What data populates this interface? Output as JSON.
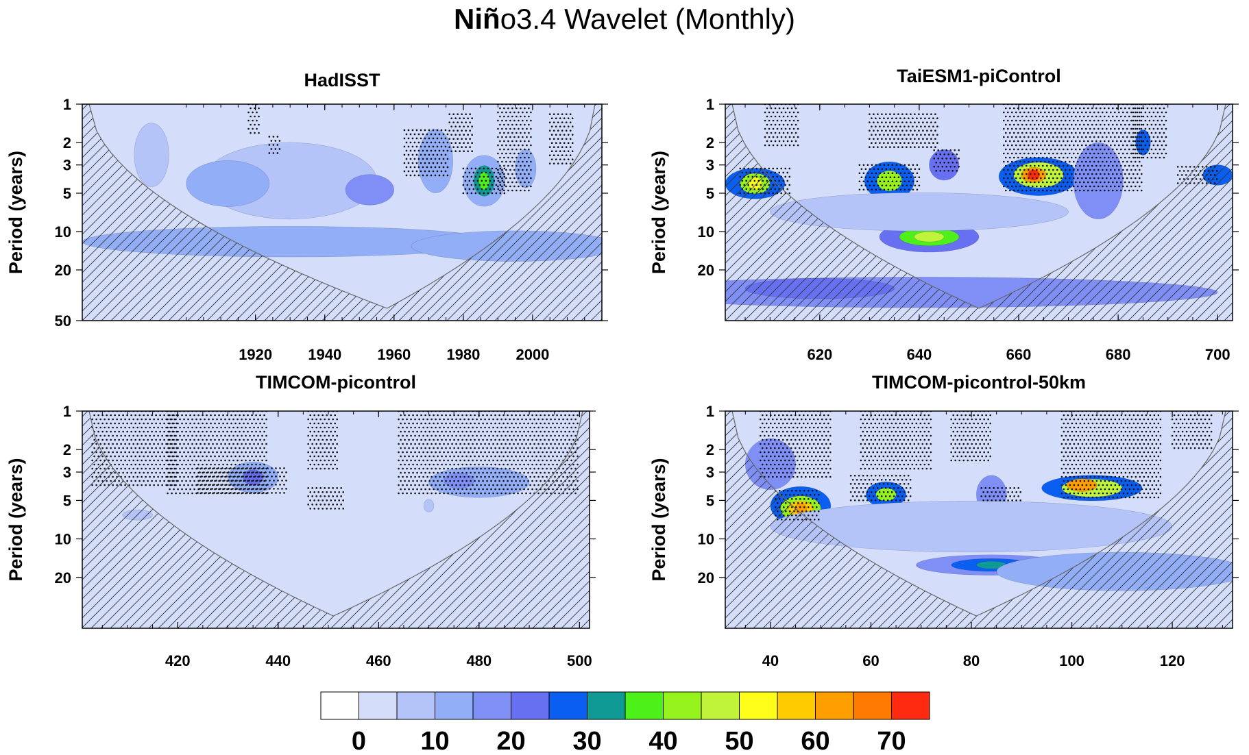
{
  "title_bold": "Niñ",
  "title_rest": "o3.4 Wavelet (Monthly)",
  "colorbar": {
    "colors": [
      "#ffffff",
      "#d4defa",
      "#b4c4f8",
      "#92aef6",
      "#7f8ff5",
      "#6870f2",
      "#0a5ef0",
      "#0f9a96",
      "#4ef01a",
      "#96f21c",
      "#c0f43a",
      "#fffd1a",
      "#ffcc00",
      "#ff9e00",
      "#ff7a00",
      "#ff2a10"
    ],
    "labels": [
      {
        "text": "0",
        "boundary": 1
      },
      {
        "text": "10",
        "boundary": 3
      },
      {
        "text": "20",
        "boundary": 5
      },
      {
        "text": "30",
        "boundary": 7
      },
      {
        "text": "40",
        "boundary": 9
      },
      {
        "text": "50",
        "boundary": 11
      },
      {
        "text": "60",
        "boundary": 13
      },
      {
        "text": "70",
        "boundary": 15
      }
    ]
  },
  "chart_data": [
    {
      "type": "heatmap",
      "title": "HadISST",
      "ylabel": "Period (years)",
      "yscale": "log",
      "xlim": [
        1870,
        2020
      ],
      "ylim": [
        1,
        50
      ],
      "xticks": [
        "1920",
        "1940",
        "1960",
        "1980",
        "2000"
      ],
      "xtick_values": [
        1920,
        1940,
        1960,
        1980,
        2000
      ],
      "yticks": [
        "1",
        "2",
        "3",
        "5",
        "10",
        "20",
        "50"
      ],
      "ytick_values": [
        1,
        2,
        3,
        5,
        10,
        20,
        50
      ],
      "coi_center": 1958,
      "background_level": 1,
      "blobs": [
        {
          "x": 1890,
          "period": 2.5,
          "sx": 5,
          "sy": 0.25,
          "level": 2
        },
        {
          "x": 1930,
          "period": 4,
          "sx": 25,
          "sy": 0.3,
          "level": 2
        },
        {
          "x": 1953,
          "period": 4.7,
          "sx": 7,
          "sy": 0.12,
          "level": 4
        },
        {
          "x": 1912,
          "period": 4.2,
          "sx": 12,
          "sy": 0.18,
          "level": 3
        },
        {
          "x": 1930,
          "period": 12,
          "sx": 60,
          "sy": 0.12,
          "level": 3
        },
        {
          "x": 1995,
          "period": 13,
          "sx": 30,
          "sy": 0.12,
          "level": 3
        },
        {
          "x": 1972,
          "period": 2.8,
          "sx": 5,
          "sy": 0.25,
          "level": 3
        },
        {
          "x": 1986,
          "period": 4.0,
          "sx": 6,
          "sy": 0.2,
          "level": 3
        },
        {
          "x": 1986,
          "period": 4.0,
          "sx": 3,
          "sy": 0.12,
          "level": 7
        },
        {
          "x": 1986,
          "period": 4.0,
          "sx": 1.5,
          "sy": 0.07,
          "level": 8
        },
        {
          "x": 1998,
          "period": 3.2,
          "sx": 3,
          "sy": 0.15,
          "level": 3
        }
      ],
      "stipple": [
        {
          "x1": 1918,
          "x2": 1921,
          "p1": 1.0,
          "p2": 1.7
        },
        {
          "x1": 1924,
          "x2": 1927,
          "p1": 1.8,
          "p2": 2.5
        },
        {
          "x1": 1963,
          "x2": 1976,
          "p1": 1.6,
          "p2": 3.8
        },
        {
          "x1": 1976,
          "x2": 1983,
          "p1": 1.2,
          "p2": 2.4
        },
        {
          "x1": 1980,
          "x2": 1992,
          "p1": 3.2,
          "p2": 5.0
        },
        {
          "x1": 1990,
          "x2": 2000,
          "p1": 1.0,
          "p2": 5.0
        },
        {
          "x1": 2005,
          "x2": 2012,
          "p1": 1.2,
          "p2": 3.0
        }
      ]
    },
    {
      "type": "heatmap",
      "title": "TaiESM1-piControl",
      "ylabel": "Period (years)",
      "yscale": "log",
      "xlim": [
        601,
        703
      ],
      "ylim": [
        1,
        50
      ],
      "xticks": [
        "620",
        "640",
        "660",
        "680",
        "700"
      ],
      "xtick_values": [
        620,
        640,
        660,
        680,
        700
      ],
      "yticks": [
        "1",
        "2",
        "3",
        "5",
        "10",
        "20"
      ],
      "ytick_values": [
        1,
        2,
        3,
        5,
        10,
        20
      ],
      "coi_center": 652,
      "background_level": 1,
      "blobs": [
        {
          "x": 607,
          "period": 4.2,
          "sx": 6,
          "sy": 0.12,
          "level": 6
        },
        {
          "x": 607,
          "period": 4.2,
          "sx": 3,
          "sy": 0.08,
          "level": 9
        },
        {
          "x": 607,
          "period": 4.2,
          "sx": 1.3,
          "sy": 0.05,
          "level": 11
        },
        {
          "x": 634,
          "period": 4.0,
          "sx": 5,
          "sy": 0.15,
          "level": 6
        },
        {
          "x": 634,
          "period": 4.0,
          "sx": 2.5,
          "sy": 0.08,
          "level": 9
        },
        {
          "x": 645,
          "period": 3.0,
          "sx": 3,
          "sy": 0.12,
          "level": 5
        },
        {
          "x": 642,
          "period": 11,
          "sx": 10,
          "sy": 0.12,
          "level": 5
        },
        {
          "x": 642,
          "period": 11,
          "sx": 6,
          "sy": 0.07,
          "level": 8
        },
        {
          "x": 642,
          "period": 11,
          "sx": 3,
          "sy": 0.04,
          "level": 10
        },
        {
          "x": 664,
          "period": 3.7,
          "sx": 8,
          "sy": 0.15,
          "level": 6
        },
        {
          "x": 664,
          "period": 3.6,
          "sx": 5,
          "sy": 0.1,
          "level": 10
        },
        {
          "x": 663,
          "period": 3.6,
          "sx": 2.5,
          "sy": 0.06,
          "level": 13
        },
        {
          "x": 663,
          "period": 3.6,
          "sx": 1.2,
          "sy": 0.04,
          "level": 15
        },
        {
          "x": 685,
          "period": 2.0,
          "sx": 1.5,
          "sy": 0.1,
          "level": 6
        },
        {
          "x": 676,
          "period": 4.0,
          "sx": 5,
          "sy": 0.3,
          "level": 4
        },
        {
          "x": 700,
          "period": 3.6,
          "sx": 3,
          "sy": 0.08,
          "level": 6
        },
        {
          "x": 640,
          "period": 30,
          "sx": 60,
          "sy": 0.12,
          "level": 4
        },
        {
          "x": 620,
          "period": 28,
          "sx": 15,
          "sy": 0.08,
          "level": 5
        },
        {
          "x": 640,
          "period": 7,
          "sx": 30,
          "sy": 0.15,
          "level": 2
        }
      ],
      "stipple": [
        {
          "x1": 604,
          "x2": 614,
          "p1": 3.2,
          "p2": 5.0
        },
        {
          "x1": 609,
          "x2": 616,
          "p1": 1.0,
          "p2": 2.2
        },
        {
          "x1": 628,
          "x2": 640,
          "p1": 3.0,
          "p2": 5.0
        },
        {
          "x1": 630,
          "x2": 644,
          "p1": 1.2,
          "p2": 2.2
        },
        {
          "x1": 643,
          "x2": 648,
          "p1": 2.3,
          "p2": 3.4
        },
        {
          "x1": 657,
          "x2": 685,
          "p1": 1.0,
          "p2": 5.0
        },
        {
          "x1": 683,
          "x2": 690,
          "p1": 1.0,
          "p2": 2.8
        },
        {
          "x1": 692,
          "x2": 700,
          "p1": 3.1,
          "p2": 4.4
        }
      ]
    },
    {
      "type": "heatmap",
      "title": "TIMCOM-picontrol",
      "ylabel": "Period (years)",
      "yscale": "log",
      "xlim": [
        401,
        502
      ],
      "ylim": [
        1,
        50
      ],
      "xticks": [
        "420",
        "440",
        "460",
        "480",
        "500"
      ],
      "xtick_values": [
        420,
        440,
        460,
        480,
        500
      ],
      "yticks": [
        "1",
        "2",
        "3",
        "5",
        "10",
        "20"
      ],
      "ytick_values": [
        1,
        2,
        3,
        5,
        10,
        20
      ],
      "coi_center": 451,
      "background_level": 1,
      "blobs": [
        {
          "x": 435,
          "period": 3.3,
          "sx": 5,
          "sy": 0.12,
          "level": 3
        },
        {
          "x": 435,
          "period": 3.3,
          "sx": 2,
          "sy": 0.06,
          "level": 5
        },
        {
          "x": 480,
          "period": 3.6,
          "sx": 10,
          "sy": 0.12,
          "level": 3
        },
        {
          "x": 476,
          "period": 3.5,
          "sx": 3,
          "sy": 0.06,
          "level": 4
        },
        {
          "x": 412,
          "period": 6.5,
          "sx": 3,
          "sy": 0.04,
          "level": 2
        },
        {
          "x": 470,
          "period": 5.5,
          "sx": 1,
          "sy": 0.05,
          "level": 2
        }
      ],
      "stipple": [
        {
          "x1": 403,
          "x2": 420,
          "p1": 1.0,
          "p2": 3.8
        },
        {
          "x1": 418,
          "x2": 438,
          "p1": 1.0,
          "p2": 4.5
        },
        {
          "x1": 424,
          "x2": 442,
          "p1": 2.8,
          "p2": 4.5
        },
        {
          "x1": 446,
          "x2": 452,
          "p1": 1.0,
          "p2": 3.0
        },
        {
          "x1": 446,
          "x2": 453,
          "p1": 4.0,
          "p2": 5.8
        },
        {
          "x1": 464,
          "x2": 500,
          "p1": 1.0,
          "p2": 4.5
        }
      ]
    },
    {
      "type": "heatmap",
      "title": "TIMCOM-picontrol-50km",
      "ylabel": "Period (years)",
      "yscale": "log",
      "xlim": [
        31,
        132
      ],
      "ylim": [
        1,
        50
      ],
      "xticks": [
        "40",
        "60",
        "80",
        "100",
        "120"
      ],
      "xtick_values": [
        40,
        60,
        80,
        100,
        120
      ],
      "yticks": [
        "1",
        "2",
        "3",
        "5",
        "10",
        "20"
      ],
      "ytick_values": [
        1,
        2,
        3,
        5,
        10,
        20
      ],
      "coi_center": 81,
      "background_level": 1,
      "blobs": [
        {
          "x": 46,
          "period": 5.5,
          "sx": 6,
          "sy": 0.15,
          "level": 6
        },
        {
          "x": 46,
          "period": 5.8,
          "sx": 4,
          "sy": 0.1,
          "level": 9
        },
        {
          "x": 46,
          "period": 5.8,
          "sx": 2.5,
          "sy": 0.06,
          "level": 12
        },
        {
          "x": 46,
          "period": 5.8,
          "sx": 1.2,
          "sy": 0.04,
          "level": 13
        },
        {
          "x": 63,
          "period": 4.5,
          "sx": 4,
          "sy": 0.1,
          "level": 6
        },
        {
          "x": 63,
          "period": 4.5,
          "sx": 2,
          "sy": 0.05,
          "level": 9
        },
        {
          "x": 40,
          "period": 2.6,
          "sx": 5,
          "sy": 0.2,
          "level": 4
        },
        {
          "x": 84,
          "period": 4.5,
          "sx": 3,
          "sy": 0.15,
          "level": 4
        },
        {
          "x": 104,
          "period": 4.0,
          "sx": 10,
          "sy": 0.1,
          "level": 6
        },
        {
          "x": 104,
          "period": 4.0,
          "sx": 6,
          "sy": 0.07,
          "level": 10
        },
        {
          "x": 102,
          "period": 3.8,
          "sx": 3,
          "sy": 0.05,
          "level": 13
        },
        {
          "x": 84,
          "period": 16,
          "sx": 15,
          "sy": 0.08,
          "level": 4
        },
        {
          "x": 84,
          "period": 16,
          "sx": 8,
          "sy": 0.05,
          "level": 6
        },
        {
          "x": 84,
          "period": 16,
          "sx": 3,
          "sy": 0.03,
          "level": 7
        },
        {
          "x": 80,
          "period": 8,
          "sx": 40,
          "sy": 0.2,
          "level": 2
        },
        {
          "x": 110,
          "period": 18,
          "sx": 25,
          "sy": 0.15,
          "level": 3
        }
      ],
      "stipple": [
        {
          "x1": 38,
          "x2": 52,
          "p1": 1.0,
          "p2": 3.5
        },
        {
          "x1": 41,
          "x2": 50,
          "p1": 4.2,
          "p2": 7.5
        },
        {
          "x1": 56,
          "x2": 68,
          "p1": 3.2,
          "p2": 5.0
        },
        {
          "x1": 58,
          "x2": 72,
          "p1": 1.0,
          "p2": 3.0
        },
        {
          "x1": 76,
          "x2": 84,
          "p1": 1.0,
          "p2": 2.6
        },
        {
          "x1": 82,
          "x2": 90,
          "p1": 4.0,
          "p2": 5.0
        },
        {
          "x1": 98,
          "x2": 118,
          "p1": 1.0,
          "p2": 4.8
        },
        {
          "x1": 120,
          "x2": 128,
          "p1": 1.0,
          "p2": 2.0
        }
      ]
    }
  ]
}
